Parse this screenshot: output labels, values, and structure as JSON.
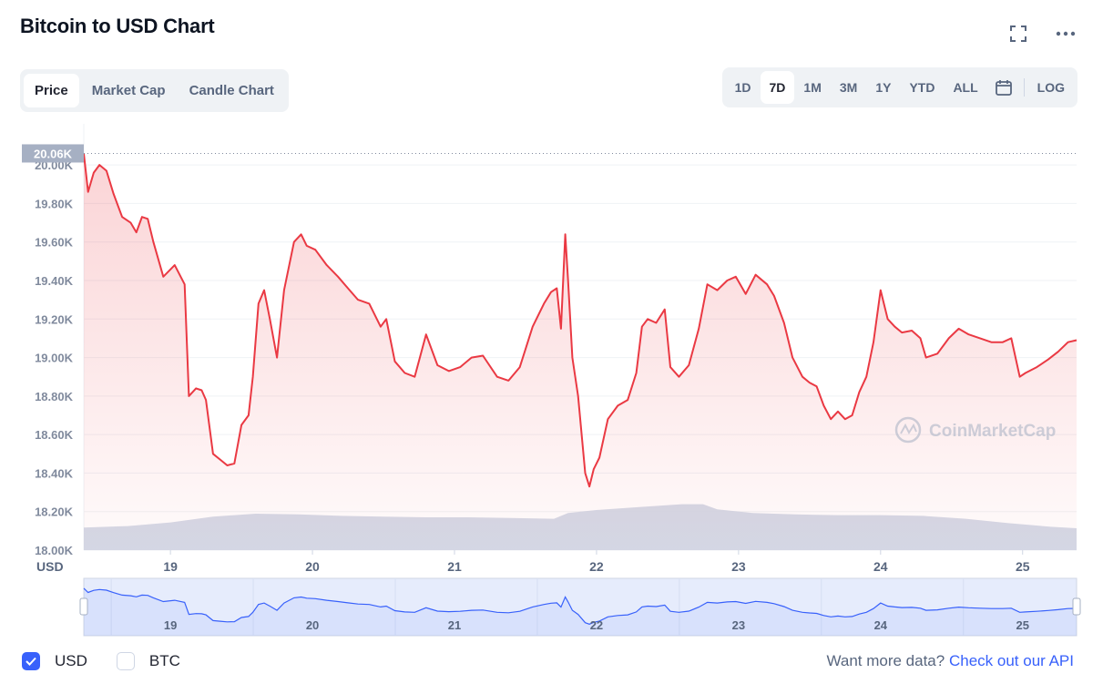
{
  "header": {
    "title": "Bitcoin to USD Chart"
  },
  "chart_tabs": [
    {
      "label": "Price",
      "active": true
    },
    {
      "label": "Market Cap",
      "active": false
    },
    {
      "label": "Candle Chart",
      "active": false
    }
  ],
  "range_tabs": [
    {
      "label": "1D",
      "active": false
    },
    {
      "label": "7D",
      "active": true
    },
    {
      "label": "1M",
      "active": false
    },
    {
      "label": "3M",
      "active": false
    },
    {
      "label": "1Y",
      "active": false
    },
    {
      "label": "YTD",
      "active": false
    },
    {
      "label": "ALL",
      "active": false
    }
  ],
  "log_label": "LOG",
  "colors": {
    "line": "#ea3943",
    "volume": "#cfd6e4",
    "navigator": "#3861fb",
    "accent": "#3861fb"
  },
  "chart_data": {
    "type": "line",
    "ylabel": "USD",
    "current_price_label": "20.06K",
    "ylim": [
      18000,
      20100
    ],
    "yticks": [
      18000,
      18200,
      18400,
      18600,
      18800,
      19000,
      19200,
      19400,
      19600,
      19800,
      20000
    ],
    "ytick_labels": [
      "18.00K",
      "18.20K",
      "18.40K",
      "18.60K",
      "18.80K",
      "19.00K",
      "19.20K",
      "19.40K",
      "19.60K",
      "19.80K",
      "20.00K"
    ],
    "xlim": [
      18.39,
      25.38
    ],
    "xticks": [
      19,
      20,
      21,
      22,
      23,
      24,
      25
    ],
    "xtick_labels": [
      "19",
      "20",
      "21",
      "22",
      "23",
      "24",
      "25"
    ],
    "watermark": "CoinMarketCap",
    "series": [
      {
        "x": [
          18.39,
          18.42,
          18.46,
          18.5,
          18.55,
          18.6,
          18.66,
          18.72,
          18.76,
          18.8,
          18.84,
          18.88,
          18.95,
          19.03,
          19.1,
          19.13,
          19.18,
          19.22,
          19.25,
          19.3,
          19.35,
          19.4,
          19.45,
          19.5,
          19.55,
          19.58,
          19.62,
          19.66,
          19.7,
          19.75,
          19.8,
          19.87,
          19.92,
          19.96,
          20.02,
          20.1,
          20.18,
          20.25,
          20.32,
          20.4,
          20.48,
          20.52,
          20.58,
          20.65,
          20.72,
          20.8,
          20.88,
          20.96,
          21.04,
          21.12,
          21.2,
          21.3,
          21.38,
          21.46,
          21.55,
          21.63,
          21.68,
          21.72,
          21.75,
          21.78,
          21.8,
          21.83,
          21.87,
          21.92,
          21.95,
          21.98,
          22.02,
          22.08,
          22.15,
          22.22,
          22.28,
          22.32,
          22.36,
          22.42,
          22.48,
          22.52,
          22.58,
          22.65,
          22.72,
          22.78,
          22.85,
          22.92,
          22.98,
          23.05,
          23.12,
          23.2,
          23.25,
          23.32,
          23.38,
          23.45,
          23.5,
          23.55,
          23.6,
          23.65,
          23.7,
          23.75,
          23.8,
          23.85,
          23.9,
          23.95,
          24.0,
          24.05,
          24.1,
          24.15,
          24.22,
          24.28,
          24.32,
          24.4,
          24.48,
          24.55,
          24.62,
          24.7,
          24.78,
          24.86,
          24.92,
          24.98,
          25.02,
          25.1,
          25.18,
          25.25,
          25.32,
          25.38
        ],
        "y": [
          20060,
          19860,
          19960,
          20000,
          19970,
          19850,
          19730,
          19700,
          19650,
          19730,
          19720,
          19600,
          19420,
          19480,
          19380,
          18800,
          18840,
          18830,
          18780,
          18500,
          18470,
          18440,
          18450,
          18650,
          18700,
          18900,
          19280,
          19350,
          19200,
          19000,
          19350,
          19600,
          19640,
          19580,
          19560,
          19480,
          19420,
          19360,
          19300,
          19280,
          19160,
          19200,
          18980,
          18920,
          18900,
          19120,
          18960,
          18930,
          18950,
          19000,
          19010,
          18900,
          18880,
          18950,
          19160,
          19280,
          19340,
          19360,
          19150,
          19640,
          19400,
          19000,
          18800,
          18400,
          18330,
          18420,
          18480,
          18680,
          18750,
          18780,
          18920,
          19160,
          19200,
          19180,
          19250,
          18950,
          18900,
          18960,
          19150,
          19380,
          19350,
          19400,
          19420,
          19330,
          19430,
          19380,
          19320,
          19180,
          19000,
          18900,
          18870,
          18850,
          18750,
          18680,
          18720,
          18680,
          18700,
          18820,
          18900,
          19080,
          19350,
          19200,
          19160,
          19130,
          19140,
          19100,
          19000,
          19020,
          19100,
          19150,
          19120,
          19100,
          19080,
          19080,
          19100,
          18900,
          18920,
          18950,
          18990,
          19030,
          19080,
          19090
        ]
      }
    ],
    "volume": {
      "x": [
        18.39,
        18.7,
        19.0,
        19.3,
        19.6,
        19.9,
        20.2,
        20.5,
        20.8,
        21.1,
        21.4,
        21.7,
        21.8,
        22.0,
        22.3,
        22.6,
        22.75,
        22.85,
        23.1,
        23.4,
        23.7,
        24.0,
        24.3,
        24.6,
        24.9,
        25.2,
        25.38
      ],
      "values": [
        0.31,
        0.33,
        0.38,
        0.46,
        0.5,
        0.49,
        0.47,
        0.46,
        0.45,
        0.45,
        0.44,
        0.43,
        0.51,
        0.55,
        0.59,
        0.63,
        0.63,
        0.56,
        0.51,
        0.49,
        0.48,
        0.48,
        0.47,
        0.43,
        0.37,
        0.32,
        0.3
      ]
    }
  },
  "footer": {
    "usd_label": "USD",
    "usd_checked": true,
    "btc_label": "BTC",
    "btc_checked": false,
    "more_data_text": "Want more data?",
    "api_link_text": "Check out our API"
  }
}
